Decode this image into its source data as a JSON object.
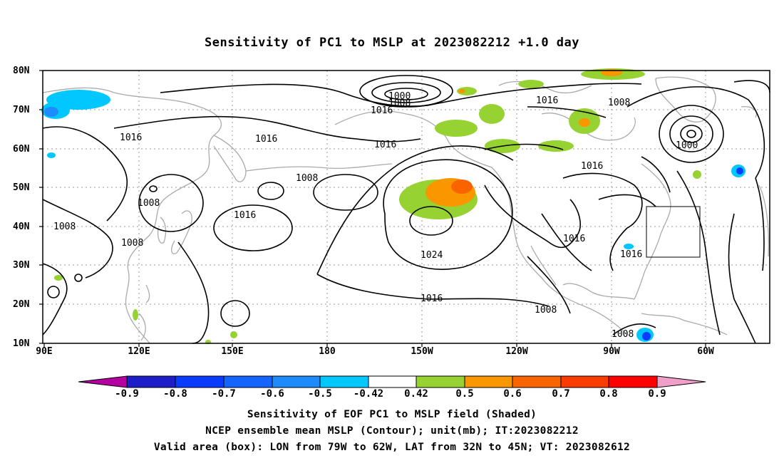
{
  "title": "Sensitivity of PC1 to MSLP at 2023082212 +1.0 day",
  "lat_labels": [
    "80N",
    "70N",
    "60N",
    "50N",
    "40N",
    "30N",
    "20N",
    "10N"
  ],
  "lon_labels": [
    "90E",
    "120E",
    "150E",
    "180",
    "150W",
    "120W",
    "90W",
    "60W"
  ],
  "contour_labels": [
    "1000",
    "1008",
    "1016",
    "1016",
    "1016",
    "1016",
    "1008",
    "1008",
    "1008",
    "1008",
    "1016",
    "1024",
    "1016",
    "1008",
    "1016",
    "1016",
    "1016",
    "1008",
    "1000"
  ],
  "colorbar": {
    "labels": [
      "-0.9",
      "-0.8",
      "-0.7",
      "-0.6",
      "-0.5",
      "-0.42",
      "0.42",
      "0.5",
      "0.6",
      "0.7",
      "0.8",
      "0.9"
    ],
    "colors": [
      "#b4009e",
      "#1e1ec8",
      "#0a3cff",
      "#1464ff",
      "#1e8cff",
      "#00c8ff",
      "#ffffff",
      "#96d232",
      "#fa9600",
      "#fa6400",
      "#fa3c00",
      "#ff0000",
      "#f0a0c8"
    ]
  },
  "captions": [
    "Sensitivity of EOF PC1 to MSLP field (Shaded)",
    "NCEP ensemble mean MSLP (Contour); unit(mb); IT:2023082212",
    "Valid area (box): LON from 79W to 62W, LAT from 32N to 45N; VT: 2023082612"
  ]
}
